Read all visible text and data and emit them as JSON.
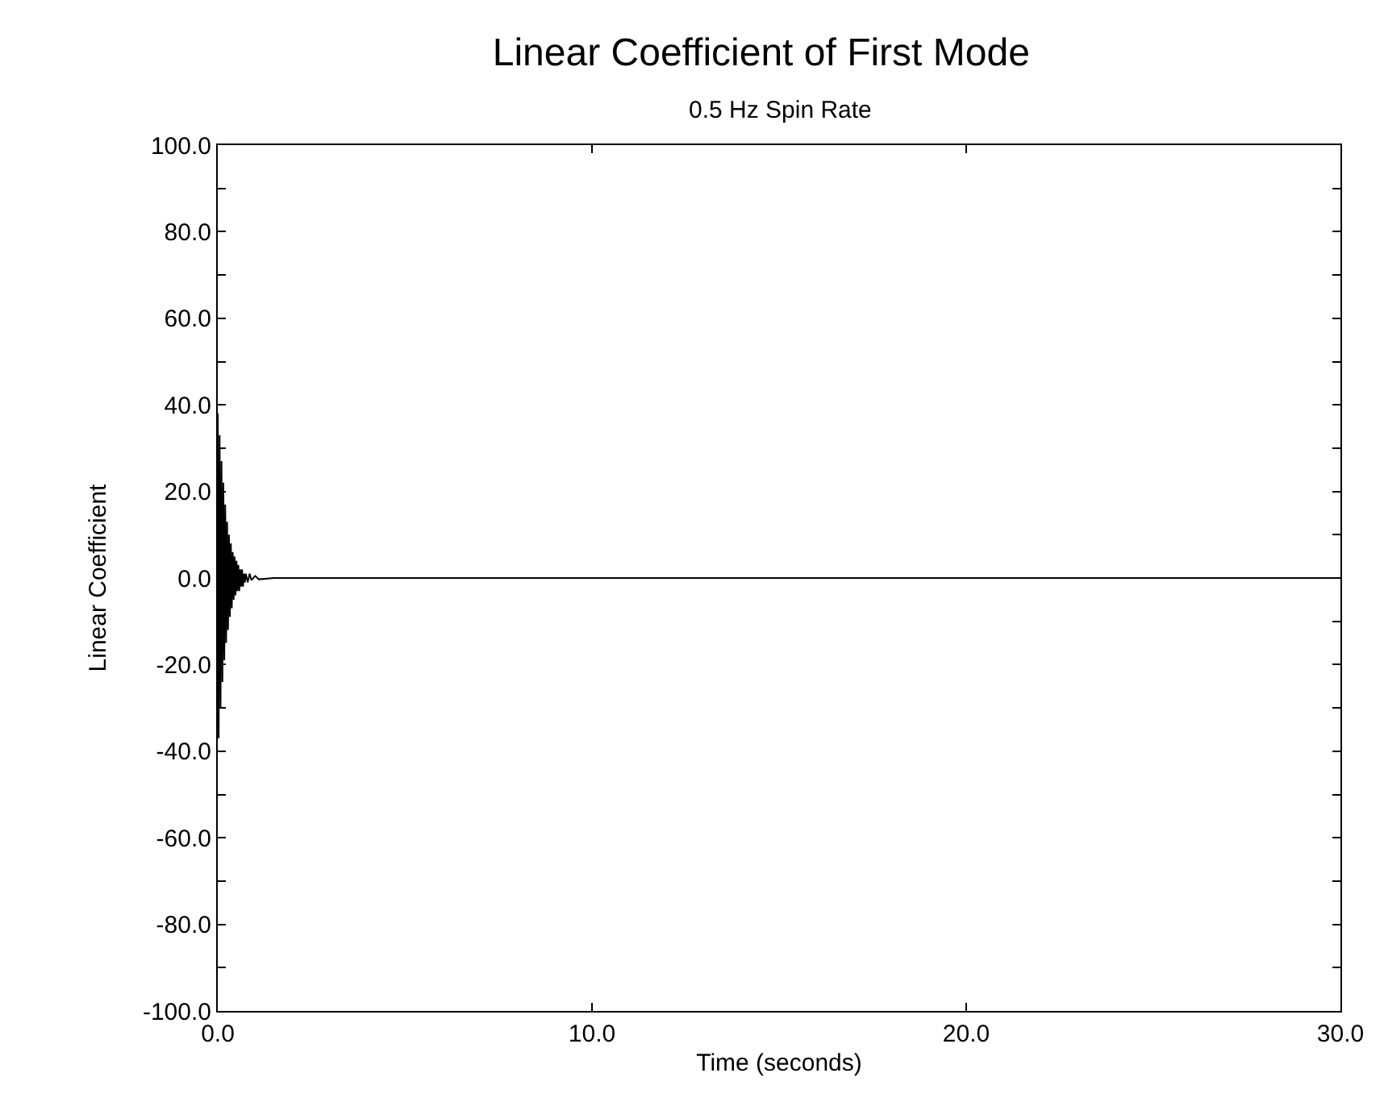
{
  "chart_data": {
    "type": "line",
    "title": "Linear Coefficient of First Mode",
    "subtitle": "0.5 Hz Spin Rate",
    "xlabel": "Time (seconds)",
    "ylabel": "Linear Coefficient",
    "x": [
      0,
      0.025,
      0.05,
      0.075,
      0.1,
      0.125,
      0.15,
      0.175,
      0.2,
      0.225,
      0.25,
      0.275,
      0.3,
      0.325,
      0.35,
      0.375,
      0.4,
      0.425,
      0.45,
      0.475,
      0.5,
      0.525,
      0.55,
      0.575,
      0.6,
      0.625,
      0.65,
      0.675,
      0.7,
      0.725,
      0.75,
      0.8,
      0.85,
      0.9,
      1.0,
      1.1,
      1.5,
      5,
      10,
      15,
      20,
      25,
      30
    ],
    "series": [
      {
        "color": "#000000",
        "values": [
          38,
          -37,
          33,
          -30,
          27,
          -24,
          22,
          -19,
          17,
          -15,
          13,
          -12,
          10,
          -9,
          8,
          -7,
          6,
          -5,
          5,
          -4,
          4,
          -3,
          3,
          -3,
          2,
          -2,
          2,
          -2,
          1,
          -1,
          1,
          -1,
          1,
          -0.5,
          0.5,
          -0.3,
          0,
          0,
          0,
          0,
          0,
          0,
          0
        ]
      }
    ],
    "xlim": [
      0,
      30
    ],
    "ylim": [
      -100,
      100
    ],
    "xticks": [
      {
        "value": 0,
        "label": "0.0"
      },
      {
        "value": 10,
        "label": "10.0"
      },
      {
        "value": 20,
        "label": "20.0"
      },
      {
        "value": 30,
        "label": "30.0"
      }
    ],
    "yticks": [
      {
        "value": -100,
        "label": "-100.0"
      },
      {
        "value": -90,
        "label": null
      },
      {
        "value": -80,
        "label": "-80.0"
      },
      {
        "value": -70,
        "label": null
      },
      {
        "value": -60,
        "label": "-60.0"
      },
      {
        "value": -50,
        "label": null
      },
      {
        "value": -40,
        "label": "-40.0"
      },
      {
        "value": -30,
        "label": null
      },
      {
        "value": -20,
        "label": "-20.0"
      },
      {
        "value": -10,
        "label": null
      },
      {
        "value": 0,
        "label": "0.0"
      },
      {
        "value": 10,
        "label": null
      },
      {
        "value": 20,
        "label": "20.0"
      },
      {
        "value": 30,
        "label": null
      },
      {
        "value": 40,
        "label": "40.0"
      },
      {
        "value": 50,
        "label": null
      },
      {
        "value": 60,
        "label": "60.0"
      },
      {
        "value": 70,
        "label": null
      },
      {
        "value": 80,
        "label": "80.0"
      },
      {
        "value": 90,
        "label": null
      },
      {
        "value": 100,
        "label": "100.0"
      }
    ],
    "marker": "none",
    "line_style": "solid"
  }
}
